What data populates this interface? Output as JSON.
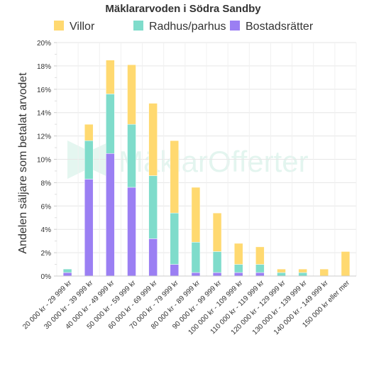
{
  "chart_data": {
    "type": "bar",
    "stacked": true,
    "title": "Mäklararvoden i Södra Sandby",
    "ylabel": "Andelen säljare som betalat arvodet",
    "xlabel": "",
    "ylim": [
      0,
      20
    ],
    "yticks": [
      "0%",
      "2%",
      "4%",
      "6%",
      "8%",
      "10%",
      "12%",
      "14%",
      "16%",
      "18%",
      "20%"
    ],
    "grid": true,
    "legend_position": "top",
    "watermark": "MäklarOfferter",
    "categories": [
      "20 000 kr - 29 999 kr",
      "30 000 kr - 39 999 kr",
      "40 000 kr - 49 999 kr",
      "50 000 kr - 59 999 kr",
      "60 000 kr - 69 999 kr",
      "70 000 kr - 79 999 kr",
      "80 000 kr - 89 999 kr",
      "90 000 kr - 99 999 kr",
      "100 000 kr - 109 999 kr",
      "110 000 kr - 119 999 kr",
      "120 000 kr - 129 999 kr",
      "130 000 kr - 139 999 kr",
      "140 000 kr - 149 999 kr",
      "150 000 kr eller mer"
    ],
    "series": [
      {
        "name": "Bostadsrätter",
        "color": "#9b7ff3",
        "values": [
          0.3,
          8.3,
          10.5,
          7.6,
          3.2,
          1.0,
          0.3,
          0.3,
          0.3,
          0.3,
          0,
          0,
          0,
          0
        ]
      },
      {
        "name": "Radhus/parhus",
        "color": "#7fdccb",
        "values": [
          0.3,
          3.3,
          5.1,
          5.4,
          5.4,
          4.4,
          2.6,
          1.8,
          0.7,
          0.7,
          0.3,
          0.3,
          0,
          0
        ]
      },
      {
        "name": "Villor",
        "color": "#ffd970",
        "values": [
          0,
          1.4,
          2.9,
          5.1,
          6.2,
          6.2,
          4.7,
          3.3,
          1.8,
          1.5,
          0.3,
          0.3,
          0.6,
          2.1
        ]
      }
    ],
    "legend_order": [
      "Villor",
      "Radhus/parhus",
      "Bostadsrätter"
    ]
  }
}
